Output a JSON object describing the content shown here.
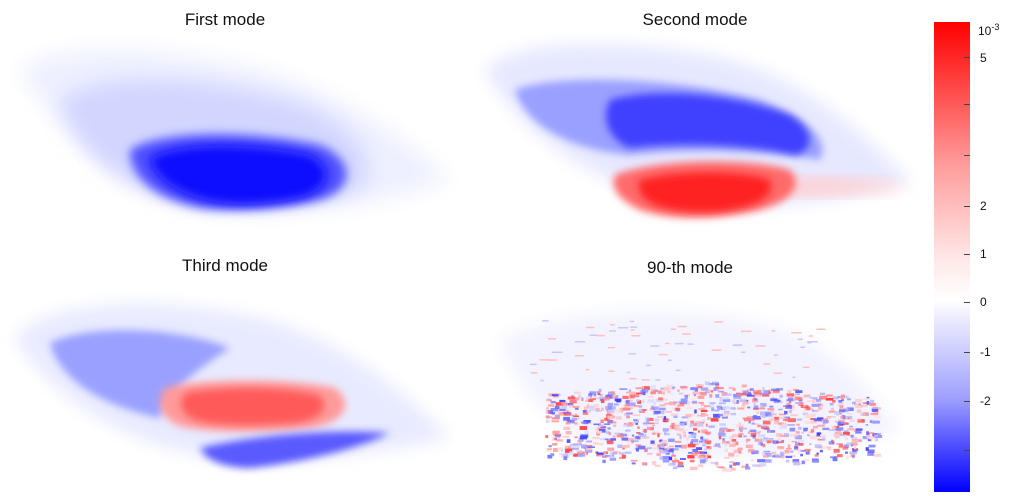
{
  "panels": [
    {
      "title": "First mode"
    },
    {
      "title": "Second mode"
    },
    {
      "title": "Third mode"
    },
    {
      "title": "90-th mode"
    }
  ],
  "colorbar": {
    "exponent_base": "10",
    "exponent": "-3",
    "ticks": [
      "5",
      "2",
      "1",
      "0",
      "-1",
      "-2"
    ],
    "colors": {
      "positive": "#ff0000",
      "zero": "#ffffff",
      "negative": "#0000ff"
    }
  }
}
